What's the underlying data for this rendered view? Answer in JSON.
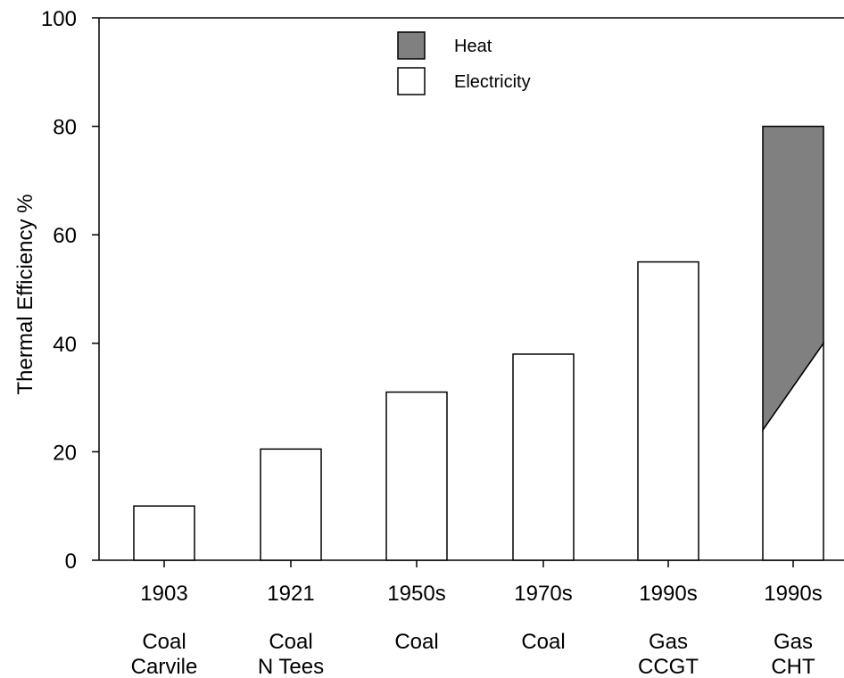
{
  "chart_data": {
    "type": "bar",
    "stacked": true,
    "categories": [
      [
        "1903",
        "Coal",
        "Carvile"
      ],
      [
        "1921",
        "Coal",
        "N Tees"
      ],
      [
        "1950s",
        "Coal"
      ],
      [
        "1970s",
        "Coal"
      ],
      [
        "1990s",
        "Gas",
        "CCGT"
      ],
      [
        "1990s",
        "Gas",
        "CHT"
      ]
    ],
    "series": [
      {
        "name": "Electricity",
        "color": "#ffffff",
        "values": [
          10,
          20.5,
          31,
          38,
          55,
          24
        ]
      },
      {
        "name": "Heat",
        "color": "#808080",
        "values": [
          0,
          0,
          0,
          0,
          0,
          56
        ]
      }
    ],
    "last_bar_divider": {
      "left": 24,
      "right": 40
    },
    "ylabel": "Thermal Efficiency %",
    "xlabel": "",
    "title": "",
    "ylim": [
      0,
      100
    ],
    "yticks": [
      0,
      20,
      40,
      60,
      80,
      100
    ],
    "grid": false,
    "legend_position": "top-center",
    "legend_order": [
      "Heat",
      "Electricity"
    ]
  }
}
